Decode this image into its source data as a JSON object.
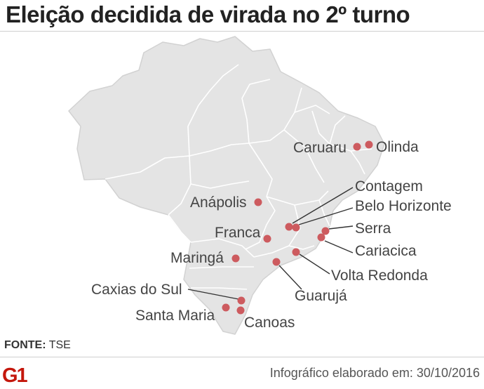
{
  "title": "Eleição decidida de virada no 2º turno",
  "source": {
    "label": "FONTE:",
    "value": "TSE"
  },
  "credit": "Infográfico elaborado em: 30/10/2016",
  "logo_text": "G1",
  "colors": {
    "marker": "#cd5b5f",
    "land": "#e4e4e4",
    "border": "#ffffff",
    "text": "#444444"
  },
  "cities": [
    {
      "name": "Caruaru"
    },
    {
      "name": "Olinda"
    },
    {
      "name": "Anápolis"
    },
    {
      "name": "Contagem"
    },
    {
      "name": "Belo Horizonte"
    },
    {
      "name": "Franca"
    },
    {
      "name": "Serra"
    },
    {
      "name": "Cariacica"
    },
    {
      "name": "Maringá"
    },
    {
      "name": "Volta Redonda"
    },
    {
      "name": "Guarujá"
    },
    {
      "name": "Caxias do Sul"
    },
    {
      "name": "Santa Maria"
    },
    {
      "name": "Canoas"
    }
  ]
}
